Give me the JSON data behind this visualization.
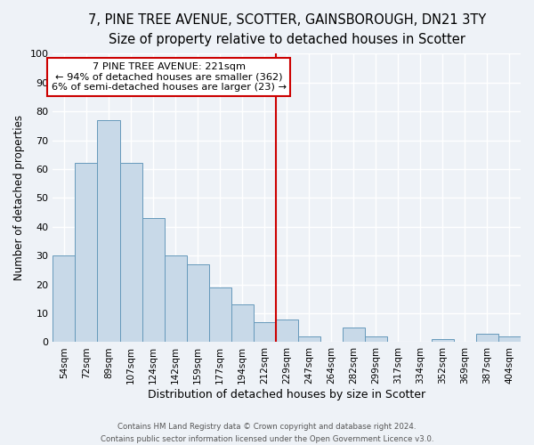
{
  "title": "7, PINE TREE AVENUE, SCOTTER, GAINSBOROUGH, DN21 3TY",
  "subtitle": "Size of property relative to detached houses in Scotter",
  "xlabel": "Distribution of detached houses by size in Scotter",
  "ylabel": "Number of detached properties",
  "bar_labels": [
    "54sqm",
    "72sqm",
    "89sqm",
    "107sqm",
    "124sqm",
    "142sqm",
    "159sqm",
    "177sqm",
    "194sqm",
    "212sqm",
    "229sqm",
    "247sqm",
    "264sqm",
    "282sqm",
    "299sqm",
    "317sqm",
    "334sqm",
    "352sqm",
    "369sqm",
    "387sqm",
    "404sqm"
  ],
  "bar_values": [
    30,
    62,
    77,
    62,
    43,
    30,
    27,
    19,
    13,
    7,
    8,
    2,
    0,
    5,
    2,
    0,
    0,
    1,
    0,
    3,
    2
  ],
  "bar_color": "#c8d9e8",
  "bar_edge_color": "#6699bb",
  "vline_x": 9.5,
  "vline_color": "#cc0000",
  "ylim": [
    0,
    100
  ],
  "yticks": [
    0,
    10,
    20,
    30,
    40,
    50,
    60,
    70,
    80,
    90,
    100
  ],
  "annotation_title": "7 PINE TREE AVENUE: 221sqm",
  "annotation_line1": "← 94% of detached houses are smaller (362)",
  "annotation_line2": "6% of semi-detached houses are larger (23) →",
  "annotation_box_color": "#cc0000",
  "footer_line1": "Contains HM Land Registry data © Crown copyright and database right 2024.",
  "footer_line2": "Contains public sector information licensed under the Open Government Licence v3.0.",
  "background_color": "#eef2f7",
  "grid_color": "#ffffff",
  "title_fontsize": 10.5,
  "subtitle_fontsize": 9.5,
  "xlabel_fontsize": 9,
  "ylabel_fontsize": 8.5
}
